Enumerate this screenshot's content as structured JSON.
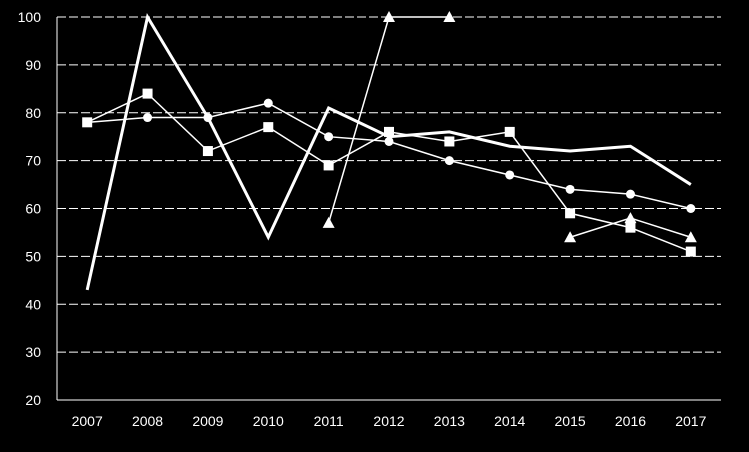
{
  "chart_data": {
    "type": "line",
    "title": "",
    "xlabel": "",
    "ylabel": "",
    "x": [
      "2007",
      "2008",
      "2009",
      "2010",
      "2011",
      "2012",
      "2013",
      "2014",
      "2015",
      "2016",
      "2017"
    ],
    "ylim": [
      20,
      100
    ],
    "yticks": [
      20,
      30,
      40,
      50,
      60,
      70,
      80,
      90,
      100
    ],
    "grid": "horizontal dashed",
    "legend": "none",
    "colors": {
      "background": "#000000",
      "series": "#ffffff",
      "grid": "#ffffff"
    },
    "series": [
      {
        "marker": "none",
        "stroke": "thick",
        "values": [
          43,
          100,
          79,
          54,
          81,
          75,
          76,
          73,
          72,
          73,
          65
        ]
      },
      {
        "marker": "square",
        "stroke": "thin",
        "values": [
          78,
          84,
          72,
          77,
          69,
          76,
          74,
          76,
          59,
          56,
          51
        ]
      },
      {
        "marker": "circle",
        "stroke": "thin",
        "values": [
          78,
          79,
          79,
          82,
          75,
          74,
          70,
          67,
          64,
          63,
          60
        ]
      },
      {
        "marker": "triangle",
        "stroke": "thin",
        "values": [
          null,
          null,
          null,
          null,
          57,
          100,
          100,
          null,
          54,
          58,
          54
        ]
      }
    ]
  }
}
